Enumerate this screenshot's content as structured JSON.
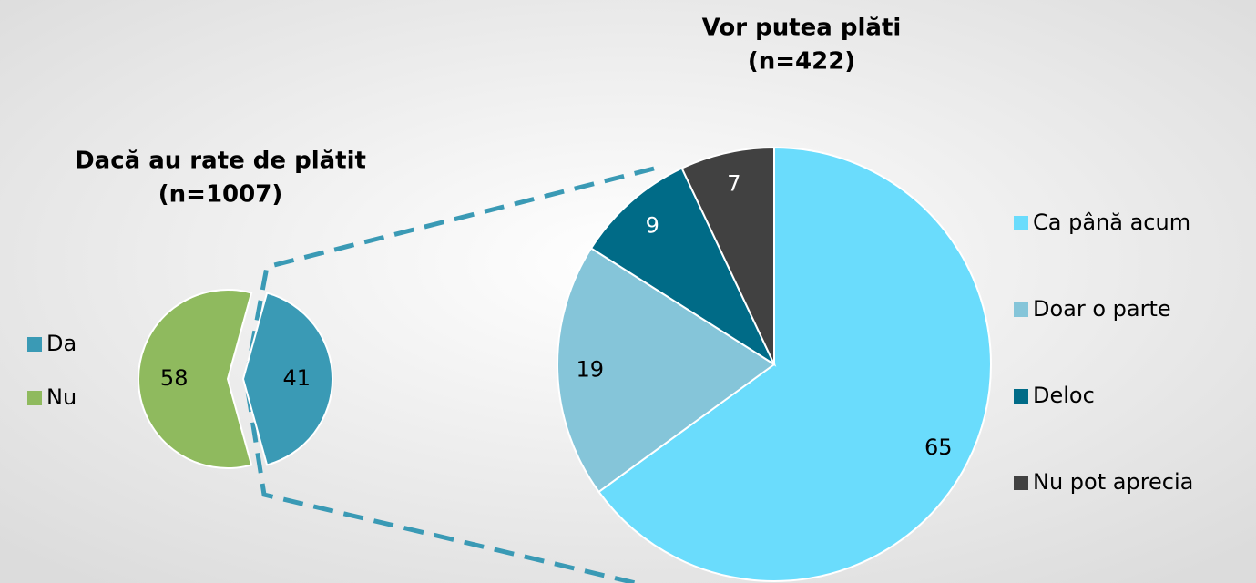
{
  "chart_data": [
    {
      "type": "pie",
      "title": "Dacă au rate de plătit",
      "subtitle": "(n=1007)",
      "categories": [
        "Da",
        "Nu"
      ],
      "values": [
        41,
        58
      ],
      "colors": [
        "#3a9ab5",
        "#8fba5e"
      ]
    },
    {
      "type": "pie",
      "title": "Vor putea plăti",
      "subtitle": "(n=422)",
      "categories": [
        "Ca până acum",
        "Doar o parte",
        "Deloc",
        "Nu pot aprecia"
      ],
      "values": [
        65,
        19,
        9,
        7
      ],
      "colors": [
        "#6adcfc",
        "#85c5d9",
        "#006b87",
        "#414141"
      ]
    }
  ]
}
